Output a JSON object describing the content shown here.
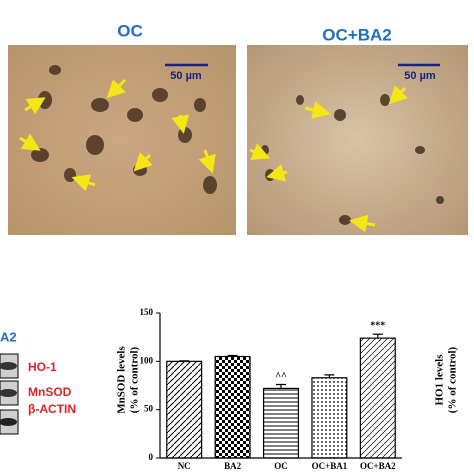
{
  "panels": {
    "left_title": "OC",
    "right_title": "OC+BA2",
    "scale_left": "50 µm",
    "scale_right": "50 µm"
  },
  "blot": {
    "panel_label": "A2",
    "bands": [
      "HO-1",
      "MnSOD",
      "β-ACTIN"
    ]
  },
  "side_axis": {
    "ylabel": [
      "HO1 levels",
      "(% of control)"
    ]
  },
  "chart_data": {
    "type": "bar",
    "ylabel": [
      "MnSOD levels",
      "(% of control)"
    ],
    "categories": [
      "NC",
      "BA2",
      "OC",
      "OC+BA1",
      "OC+BA2"
    ],
    "values": [
      100,
      105,
      72,
      83,
      124
    ],
    "errors": [
      0.5,
      1,
      4,
      3,
      4
    ],
    "patterns": [
      "diag",
      "checker",
      "hlines",
      "dots",
      "diag2"
    ],
    "annotations": [
      {
        "category": 2,
        "text": "^^"
      },
      {
        "category": 4,
        "text": "***"
      }
    ],
    "ylim": [
      0,
      150
    ],
    "yticks": [
      0,
      50,
      100,
      150
    ],
    "color": "#000000"
  }
}
